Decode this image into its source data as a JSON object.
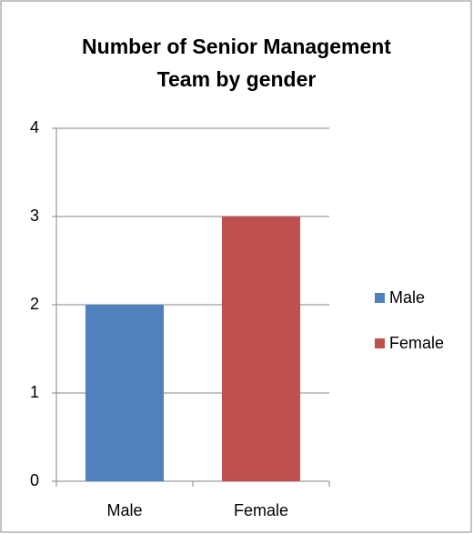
{
  "chart_data": {
    "type": "bar",
    "title": "Number of Senior Management Team by gender",
    "categories": [
      "Male",
      "Female"
    ],
    "values": [
      2,
      3
    ],
    "colors": [
      "#4f81bd",
      "#c0504d"
    ],
    "ylim": [
      0,
      4
    ],
    "yticks": [
      0,
      1,
      2,
      3,
      4
    ],
    "grid": true,
    "legend": "right"
  }
}
